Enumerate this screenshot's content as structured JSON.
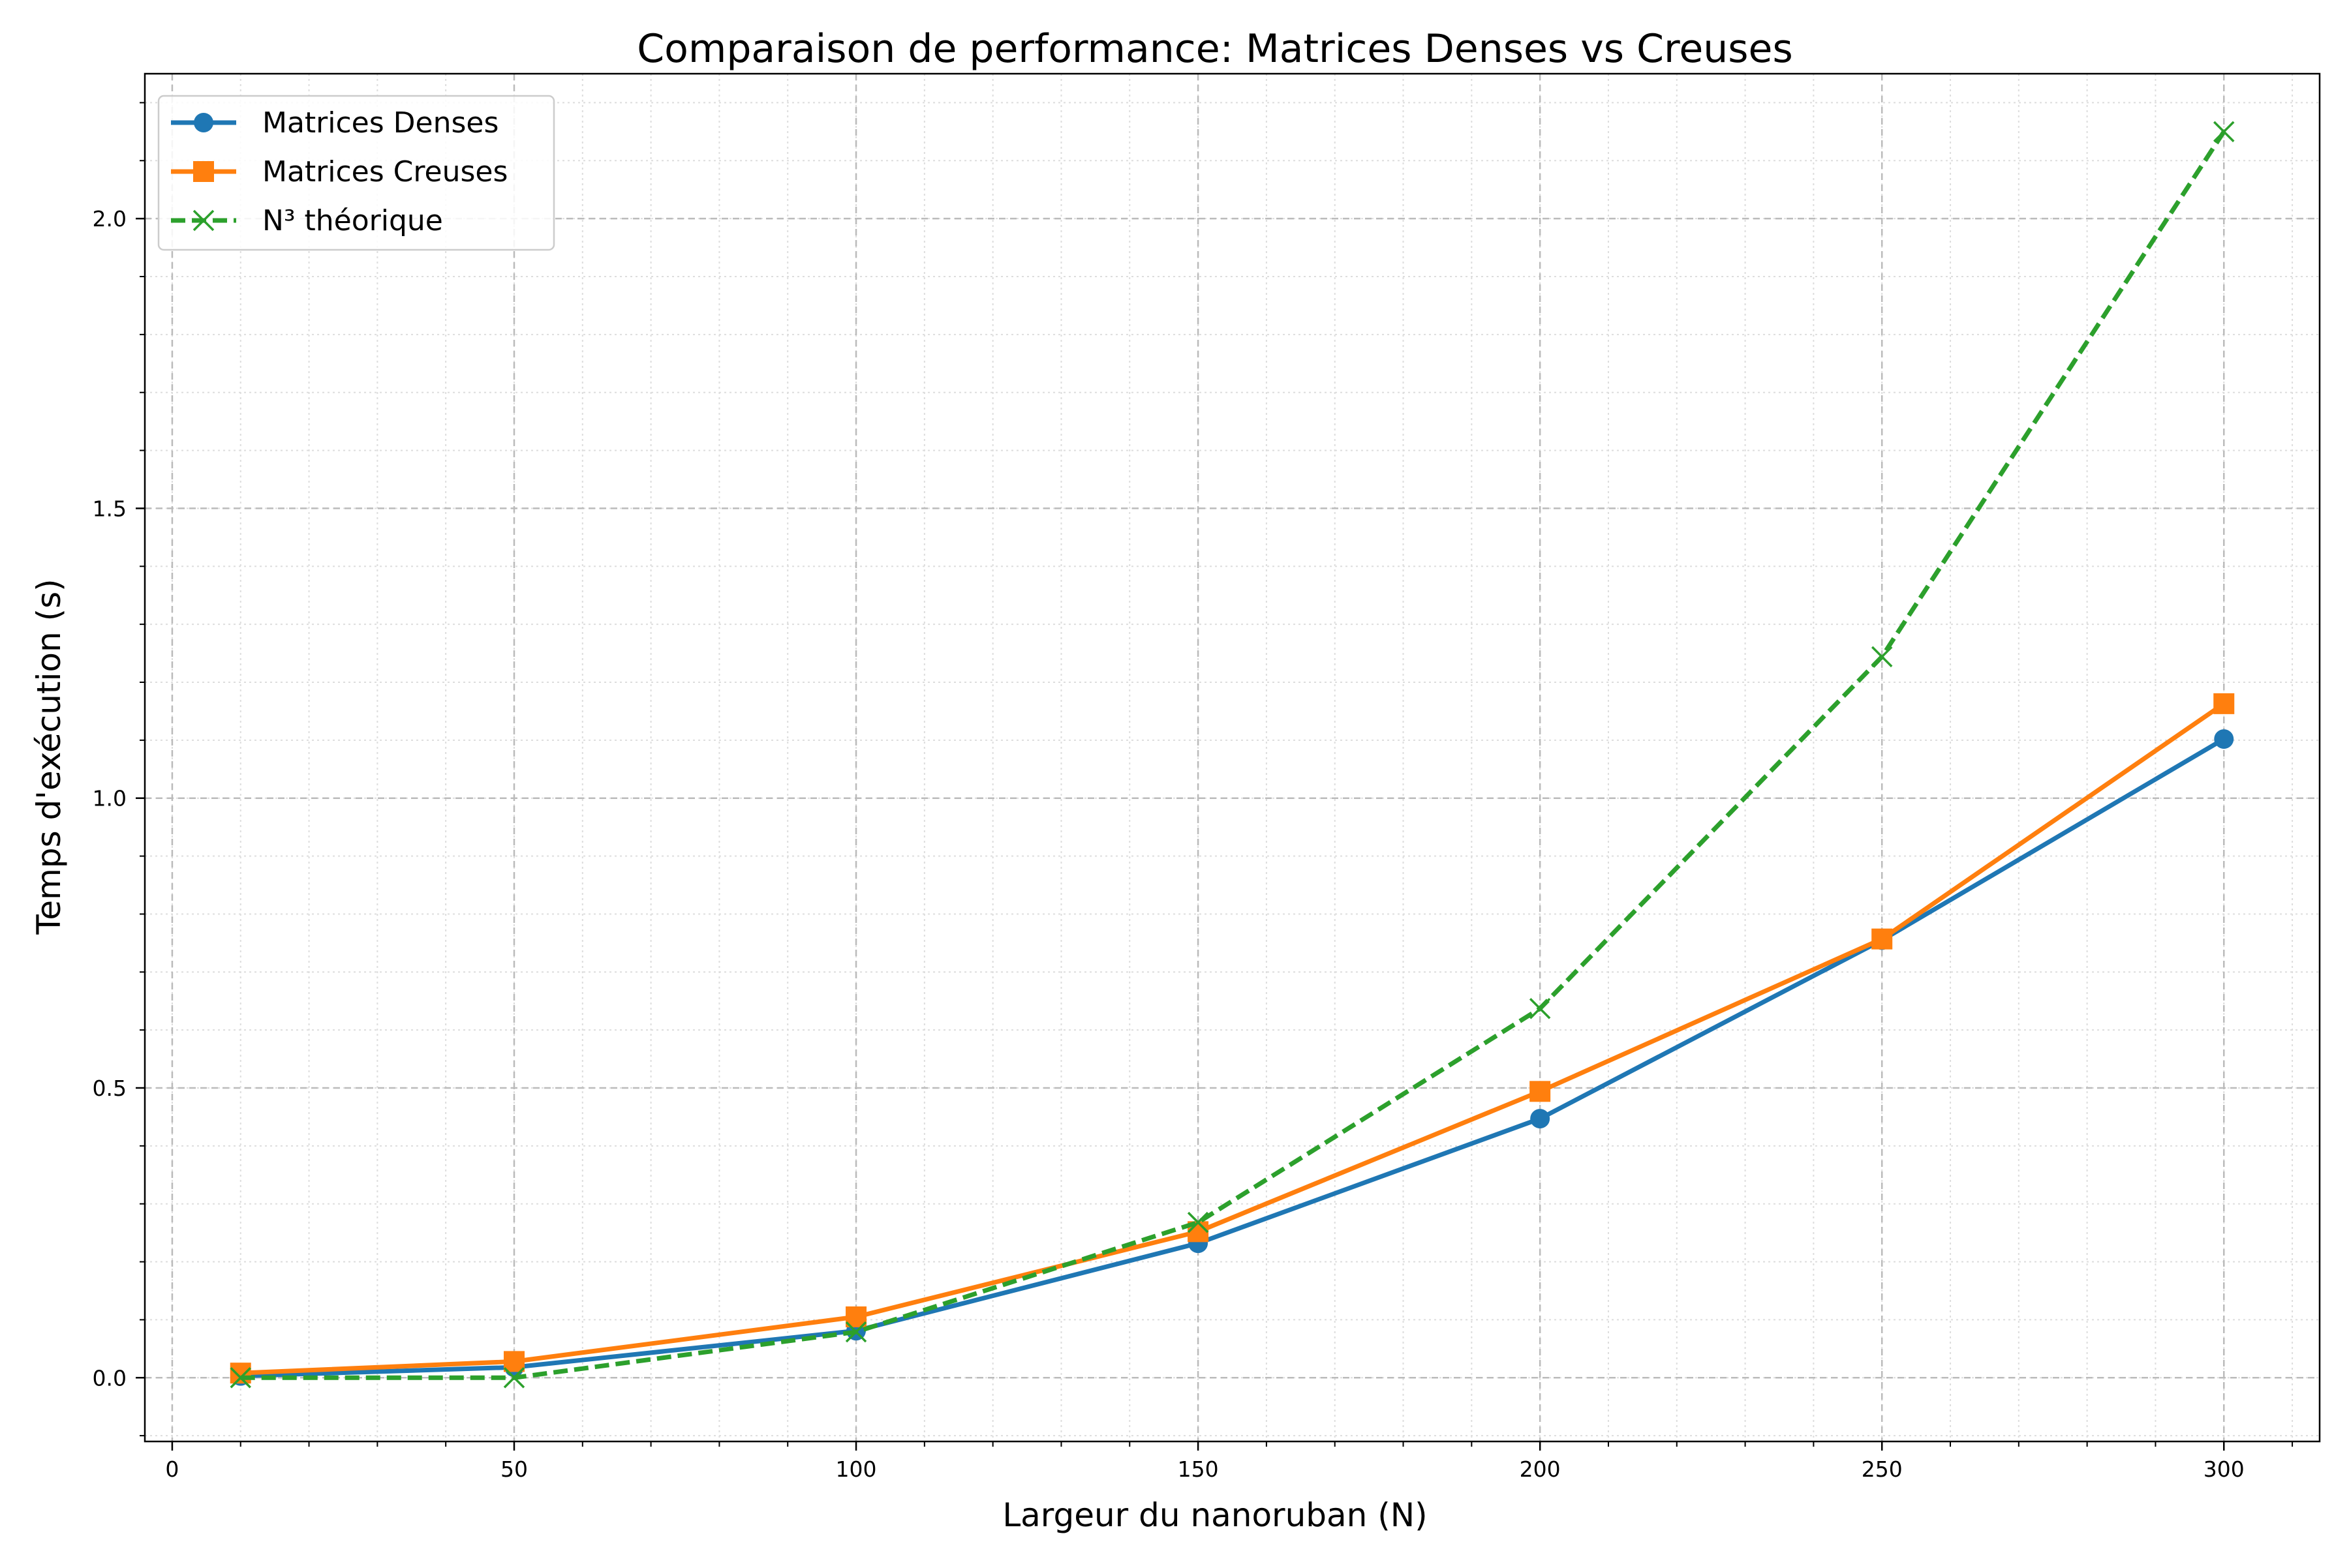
{
  "chart_data": {
    "type": "line",
    "title": "Comparaison de performance: Matrices Denses vs Creuses",
    "xlabel": "Largeur du nanoruban (N)",
    "ylabel": "Temps d'exécution (s)",
    "xlim": [
      -4,
      314
    ],
    "ylim": [
      -0.11,
      2.25
    ],
    "x_ticks": [
      0,
      50,
      100,
      150,
      200,
      250,
      300
    ],
    "x_tick_labels": [
      "0",
      "50",
      "100",
      "150",
      "200",
      "250",
      "300"
    ],
    "y_ticks": [
      0.0,
      0.5,
      1.0,
      1.5,
      2.0
    ],
    "y_tick_labels": [
      "0.0",
      "0.5",
      "1.0",
      "1.5",
      "2.0"
    ],
    "x_minor_step": 10,
    "y_minor_step": 0.1,
    "grid": true,
    "legend_position": "top-left",
    "x": [
      10,
      50,
      100,
      150,
      200,
      250,
      300
    ],
    "series": [
      {
        "name": "Matrices Denses",
        "values": [
          0.003,
          0.018,
          0.081,
          0.232,
          0.447,
          0.755,
          1.102
        ],
        "color": "#1f77b4",
        "marker": "circle",
        "line_style": "solid"
      },
      {
        "name": "Matrices Creuses",
        "values": [
          0.008,
          0.028,
          0.105,
          0.252,
          0.494,
          0.757,
          1.163
        ],
        "color": "#ff7f0e",
        "marker": "square",
        "line_style": "solid"
      },
      {
        "name": "N³ théorique",
        "values": [
          0.0,
          0.0,
          0.079,
          0.268,
          0.637,
          1.244,
          2.15
        ],
        "color": "#2ca02c",
        "marker": "x",
        "line_style": "dashed"
      }
    ]
  }
}
